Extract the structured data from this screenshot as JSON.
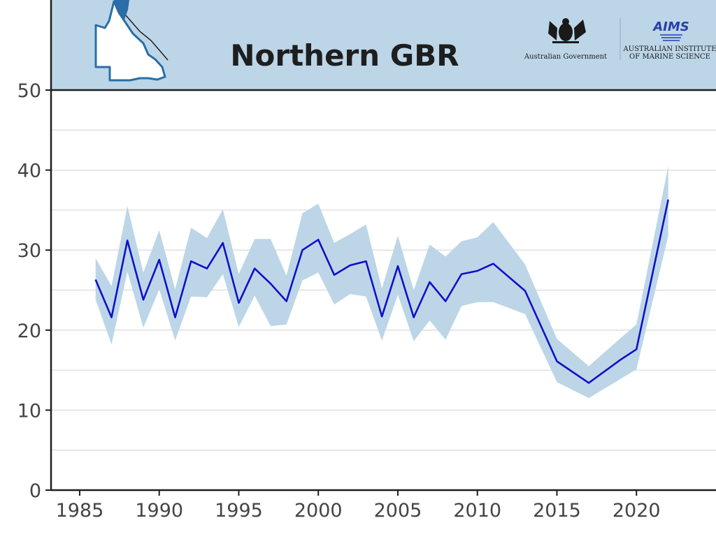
{
  "header": {
    "title": "Northern GBR",
    "gov_logo_text": "Australian Government",
    "aims_logo_text_line1": "AUSTRALIAN INSTITUTE",
    "aims_logo_text_line2": "OF MARINE SCIENCE",
    "aims_wordmark": "AIMS",
    "background_color": "#bcd6e8",
    "map_fill_color": "#ffffff",
    "map_outline_color": "#2a6ea6",
    "map_highlight_color": "#2a6ea6"
  },
  "chart_data": {
    "type": "line",
    "title": "Northern GBR",
    "xlabel": "",
    "ylabel": "",
    "xlim": [
      1983.2,
      2025
    ],
    "ylim": [
      0,
      50
    ],
    "x_ticks": [
      1985,
      1990,
      1995,
      2000,
      2005,
      2010,
      2015,
      2020
    ],
    "y_ticks": [
      0,
      10,
      20,
      30,
      40,
      50
    ],
    "grid": true,
    "line_color": "#1010c8",
    "band_color": "#bcd6e8",
    "series": [
      {
        "x": [
          1986,
          1987,
          1988,
          1989,
          1990,
          1991,
          1992,
          1993,
          1994,
          1995,
          1996,
          1997,
          1998,
          1999,
          2000,
          2001,
          2002,
          2003,
          2004,
          2005,
          2006,
          2007,
          2008,
          2009,
          2010,
          2011,
          2013,
          2015,
          2017,
          2019,
          2020,
          2022
        ],
        "values": [
          26.3,
          21.6,
          31.2,
          23.8,
          28.8,
          21.6,
          28.6,
          27.7,
          30.9,
          23.4,
          27.7,
          25.8,
          23.6,
          30.0,
          31.3,
          26.9,
          28.1,
          28.6,
          21.7,
          28.0,
          21.6,
          26.0,
          23.6,
          27.0,
          27.4,
          28.3,
          24.9,
          16.1,
          13.4,
          16.3,
          17.6,
          36.3
        ],
        "lower": [
          23.8,
          18.2,
          27.3,
          20.3,
          25.1,
          18.7,
          24.2,
          24.1,
          27.0,
          20.4,
          24.3,
          20.5,
          20.7,
          26.2,
          27.2,
          23.2,
          24.5,
          24.2,
          18.7,
          24.4,
          18.6,
          21.2,
          18.8,
          23.0,
          23.5,
          23.5,
          22.0,
          13.5,
          11.5,
          13.9,
          15.1,
          31.8
        ],
        "upper": [
          29.0,
          25.5,
          35.5,
          27.2,
          32.5,
          25.1,
          32.8,
          31.5,
          35.1,
          27.0,
          31.4,
          31.4,
          26.8,
          34.6,
          35.8,
          30.9,
          32.0,
          33.2,
          25.2,
          31.8,
          25.0,
          30.7,
          29.2,
          31.1,
          31.6,
          33.5,
          28.2,
          18.9,
          15.5,
          19.0,
          20.7,
          40.5
        ]
      }
    ]
  }
}
